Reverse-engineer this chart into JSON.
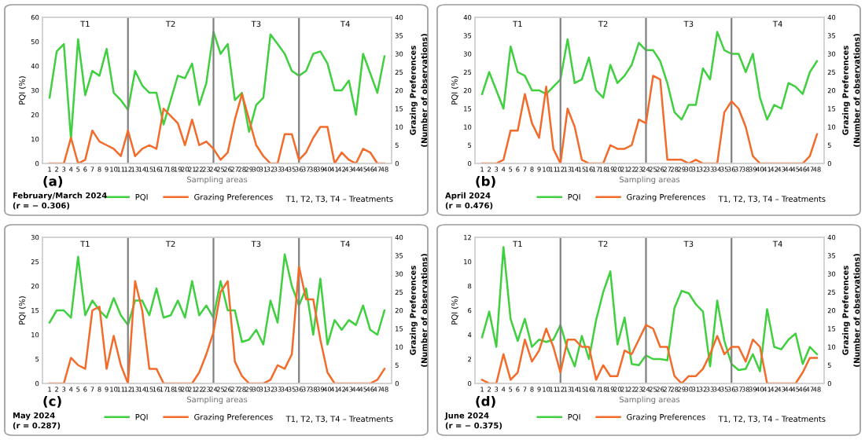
{
  "chart_data": [
    {
      "type": "line",
      "title": "(a)",
      "subtitle": "February/March 2024\n(r = − 0.306)",
      "xlabel": "Sampling areas",
      "ylabel": "PQI (%)",
      "y2label": "Grazing Preferences\n(Number of observations)",
      "x": [
        1,
        2,
        3,
        4,
        5,
        6,
        7,
        8,
        9,
        10,
        11,
        12,
        13,
        14,
        15,
        16,
        17,
        18,
        19,
        20,
        21,
        22,
        23,
        24,
        25,
        26,
        27,
        28,
        29,
        30,
        31,
        32,
        33,
        34,
        35,
        36,
        37,
        38,
        39,
        40,
        41,
        42,
        43,
        44,
        45,
        46,
        47,
        48
      ],
      "xlim": [
        0,
        49
      ],
      "xticks": [
        1,
        2,
        3,
        4,
        5,
        6,
        7,
        8,
        9,
        10,
        11,
        12,
        13,
        14,
        15,
        16,
        17,
        18,
        19,
        20,
        21,
        22,
        23,
        24,
        25,
        26,
        27,
        28,
        29,
        30,
        31,
        32,
        33,
        34,
        35,
        36,
        37,
        38,
        39,
        40,
        41,
        42,
        43,
        44,
        45,
        46,
        47,
        48
      ],
      "ylim": [
        0,
        60
      ],
      "yticks": [
        0,
        10,
        20,
        30,
        40,
        50,
        60
      ],
      "y2lim": [
        0,
        40
      ],
      "y2ticks": [
        0,
        5,
        10,
        15,
        20,
        25,
        30,
        35,
        40
      ],
      "series": [
        {
          "name": "PQI",
          "color": "#3fcf3f",
          "values": [
            27,
            46,
            49,
            10,
            51,
            28,
            38,
            36,
            47,
            29,
            26,
            22,
            38,
            32,
            29,
            29,
            16,
            26,
            36,
            35,
            41,
            24,
            33,
            54,
            45,
            49,
            26,
            29,
            13,
            24,
            27,
            53,
            49,
            45,
            38,
            36,
            38,
            45,
            46,
            41,
            30,
            30,
            34,
            20,
            45,
            37,
            29,
            44
          ]
        },
        {
          "name": "Grazing Preferences",
          "color": "#f26b2a",
          "axis": "y2",
          "values": [
            0,
            0,
            0,
            7,
            0,
            1,
            9,
            6,
            5,
            4,
            2,
            9,
            2,
            4,
            5,
            4,
            15,
            13,
            11,
            5,
            12,
            5,
            6,
            4,
            1,
            3,
            12,
            19,
            12,
            5,
            2,
            0,
            0,
            8,
            8,
            1,
            3,
            7,
            10,
            10,
            0,
            3,
            1,
            0,
            4,
            3,
            0,
            0
          ]
        }
      ],
      "ref_lines": [
        {
          "axis": "x",
          "value": 12,
          "color": "#808080"
        },
        {
          "axis": "x",
          "value": 24,
          "color": "#808080"
        },
        {
          "axis": "x",
          "value": 36,
          "color": "#808080"
        }
      ],
      "annotations": [
        "T1",
        "T2",
        "T3",
        "T4",
        "T1, T2, T3, T4 – Treatments"
      ],
      "legend": "bottom",
      "grid": false,
      "marker": "none",
      "line_style": "solid"
    },
    {
      "type": "line",
      "title": "(b)",
      "subtitle": "April 2024\n(r = 0.476)",
      "xlabel": "Sampling areas",
      "ylabel": "PQI (%)",
      "y2label": "Grazing Preferences\n(Number of observations)",
      "x": [
        1,
        2,
        3,
        4,
        5,
        6,
        7,
        8,
        9,
        10,
        11,
        12,
        13,
        14,
        15,
        16,
        17,
        18,
        19,
        20,
        21,
        22,
        23,
        24,
        25,
        26,
        27,
        28,
        29,
        30,
        31,
        32,
        33,
        34,
        35,
        36,
        37,
        38,
        39,
        40,
        41,
        42,
        43,
        44,
        45,
        46,
        47,
        48
      ],
      "xlim": [
        0,
        49
      ],
      "xticks": [
        1,
        2,
        3,
        4,
        5,
        6,
        7,
        8,
        9,
        10,
        11,
        12,
        13,
        14,
        15,
        16,
        17,
        18,
        19,
        20,
        21,
        22,
        23,
        24,
        25,
        26,
        27,
        28,
        29,
        30,
        31,
        32,
        33,
        34,
        35,
        36,
        37,
        38,
        39,
        40,
        41,
        42,
        43,
        44,
        45,
        46,
        47,
        48
      ],
      "ylim": [
        0,
        40
      ],
      "yticks": [
        0,
        5,
        10,
        15,
        20,
        25,
        30,
        35,
        40
      ],
      "y2lim": [
        0,
        40
      ],
      "y2ticks": [
        0,
        5,
        10,
        15,
        20,
        25,
        30,
        35,
        40
      ],
      "series": [
        {
          "name": "PQI",
          "color": "#3fcf3f",
          "values": [
            19,
            25,
            20,
            15,
            32,
            25,
            24,
            20,
            20,
            19,
            21,
            23,
            34,
            22,
            23,
            29,
            20,
            18,
            27,
            22,
            24,
            27,
            33,
            31,
            31,
            28,
            22,
            14,
            12,
            16,
            16,
            26,
            23,
            36,
            31,
            30,
            30,
            25,
            30,
            18,
            12,
            16,
            15,
            22,
            21,
            19,
            25,
            28
          ]
        },
        {
          "name": "Grazing Preferences",
          "color": "#f26b2a",
          "axis": "y2",
          "values": [
            0,
            0,
            0,
            1,
            9,
            9,
            19,
            11,
            7,
            21,
            4,
            0,
            15,
            10,
            1,
            0,
            0,
            0,
            5,
            4,
            4,
            5,
            12,
            11,
            24,
            23,
            1,
            1,
            1,
            0,
            1,
            0,
            0,
            0,
            14,
            17,
            15,
            10,
            2,
            0,
            0,
            0,
            0,
            0,
            0,
            0,
            2,
            8
          ]
        }
      ],
      "ref_lines": [
        {
          "axis": "x",
          "value": 12,
          "color": "#808080"
        },
        {
          "axis": "x",
          "value": 24,
          "color": "#808080"
        },
        {
          "axis": "x",
          "value": 36,
          "color": "#808080"
        }
      ],
      "annotations": [
        "T1",
        "T2",
        "T3",
        "T4",
        "T1, T2, T3, T4 – Treatments"
      ],
      "legend": "bottom",
      "grid": false,
      "marker": "none",
      "line_style": "solid"
    },
    {
      "type": "line",
      "title": "(c)",
      "subtitle": "May 2024\n(r = 0.287)",
      "xlabel": "Sampling areas",
      "ylabel": "PQI (%)",
      "y2label": "Grazing Preferences\n(Number of observations)",
      "x": [
        1,
        2,
        3,
        4,
        5,
        6,
        7,
        8,
        9,
        10,
        11,
        12,
        13,
        14,
        15,
        16,
        17,
        18,
        19,
        20,
        21,
        22,
        23,
        24,
        25,
        26,
        27,
        28,
        29,
        30,
        31,
        32,
        33,
        34,
        35,
        36,
        37,
        38,
        39,
        40,
        41,
        42,
        43,
        44,
        45,
        46,
        47,
        48
      ],
      "xlim": [
        0,
        49
      ],
      "xticks": [
        1,
        2,
        3,
        4,
        5,
        6,
        7,
        8,
        9,
        10,
        11,
        12,
        13,
        14,
        15,
        16,
        17,
        18,
        19,
        20,
        21,
        22,
        23,
        24,
        25,
        26,
        27,
        28,
        29,
        30,
        31,
        32,
        33,
        34,
        35,
        36,
        37,
        38,
        39,
        40,
        41,
        42,
        43,
        44,
        45,
        46,
        47,
        48
      ],
      "ylim": [
        0,
        30
      ],
      "yticks": [
        0,
        5,
        10,
        15,
        20,
        25,
        30
      ],
      "y2lim": [
        0,
        40
      ],
      "y2ticks": [
        0,
        5,
        10,
        15,
        20,
        25,
        30,
        35,
        40
      ],
      "series": [
        {
          "name": "PQI",
          "color": "#3fcf3f",
          "values": [
            12.5,
            15,
            15,
            13.5,
            26,
            14,
            17,
            15,
            13.5,
            17.5,
            14,
            12,
            17,
            17,
            14,
            19.5,
            13.5,
            14,
            17,
            13.5,
            21,
            14,
            16,
            13.5,
            21,
            15,
            15,
            8.5,
            9,
            11,
            8,
            17,
            12.5,
            26.5,
            20,
            16,
            19.5,
            10,
            21.5,
            8,
            13,
            11,
            13,
            12,
            16,
            11,
            10,
            15
          ]
        },
        {
          "name": "Grazing Preferences",
          "color": "#f26b2a",
          "axis": "y2",
          "values": [
            0,
            0,
            0,
            7,
            5,
            4,
            20,
            21,
            4,
            13,
            5,
            0,
            28,
            20,
            4,
            4,
            0,
            0,
            0,
            0,
            0,
            3,
            8,
            14,
            25,
            28,
            6,
            2,
            0,
            0,
            0,
            1,
            5,
            4,
            8,
            32,
            23,
            23,
            12,
            3,
            0,
            0,
            0,
            0,
            0,
            0,
            1,
            4
          ]
        }
      ],
      "ref_lines": [
        {
          "axis": "x",
          "value": 12,
          "color": "#808080"
        },
        {
          "axis": "x",
          "value": 24,
          "color": "#808080"
        },
        {
          "axis": "x",
          "value": 36,
          "color": "#808080"
        }
      ],
      "annotations": [
        "T1",
        "T2",
        "T3",
        "T4",
        "T1, T2, T3, T4 – Treatments"
      ],
      "legend": "bottom",
      "grid": false,
      "marker": "none",
      "line_style": "solid"
    },
    {
      "type": "line",
      "title": "(d)",
      "subtitle": "June 2024\n(r = − 0.375)",
      "xlabel": "Sampling areas",
      "ylabel": "PQI (%)",
      "y2label": "Grazing Preferences\n(Number of observations)",
      "x": [
        1,
        2,
        3,
        4,
        5,
        6,
        7,
        8,
        9,
        10,
        11,
        12,
        13,
        14,
        15,
        16,
        17,
        18,
        19,
        20,
        21,
        22,
        23,
        24,
        25,
        26,
        27,
        28,
        29,
        30,
        31,
        32,
        33,
        34,
        35,
        36,
        37,
        38,
        39,
        40,
        41,
        42,
        43,
        44,
        45,
        46,
        47,
        48
      ],
      "xlim": [
        0,
        49
      ],
      "xticks": [
        1,
        2,
        3,
        4,
        5,
        6,
        7,
        8,
        9,
        10,
        11,
        12,
        13,
        14,
        15,
        16,
        17,
        18,
        19,
        20,
        21,
        22,
        23,
        24,
        25,
        26,
        27,
        28,
        29,
        30,
        31,
        32,
        33,
        34,
        35,
        36,
        37,
        38,
        39,
        40,
        41,
        42,
        43,
        44,
        45,
        46,
        47,
        48
      ],
      "ylim": [
        0,
        12
      ],
      "yticks": [
        0,
        2,
        4,
        6,
        8,
        10,
        12
      ],
      "y2lim": [
        0,
        40
      ],
      "y2ticks": [
        0,
        5,
        10,
        15,
        20,
        25,
        30,
        35,
        40
      ],
      "series": [
        {
          "name": "PQI",
          "color": "#3fcf3f",
          "values": [
            3.8,
            5.9,
            3,
            11.2,
            5.3,
            3.5,
            5.3,
            3,
            3.6,
            3.4,
            3.6,
            4.8,
            2.8,
            1.4,
            3.9,
            2,
            5.2,
            7.5,
            9.2,
            3.2,
            5.4,
            1.6,
            1.5,
            2.3,
            2,
            2,
            1.9,
            6.2,
            7.6,
            7.4,
            6.5,
            5.9,
            1.4,
            6.8,
            3.5,
            1.6,
            1.1,
            1.2,
            2.4,
            1,
            6.1,
            3,
            2.8,
            3.6,
            4.1,
            1.6,
            3,
            2.4
          ]
        },
        {
          "name": "Grazing Preferences",
          "color": "#f26b2a",
          "axis": "y2",
          "values": [
            1,
            0,
            0,
            8,
            1,
            3,
            12,
            6,
            9,
            15,
            10,
            3,
            12,
            12,
            10,
            10,
            1,
            5,
            2,
            2,
            9,
            8,
            12,
            16,
            15,
            10,
            10,
            2,
            0,
            2,
            2,
            4,
            8,
            13,
            8,
            10,
            10,
            6,
            12,
            10,
            0,
            0,
            0,
            0,
            0,
            3,
            7,
            7
          ]
        }
      ],
      "ref_lines": [
        {
          "axis": "x",
          "value": 12,
          "color": "#808080"
        },
        {
          "axis": "x",
          "value": 24,
          "color": "#808080"
        },
        {
          "axis": "x",
          "value": 36,
          "color": "#808080"
        }
      ],
      "annotations": [
        "T1",
        "T2",
        "T3",
        "T4",
        "T1, T2, T3, T4 – Treatments"
      ],
      "legend": "bottom",
      "grid": false,
      "marker": "none",
      "line_style": "solid"
    }
  ]
}
